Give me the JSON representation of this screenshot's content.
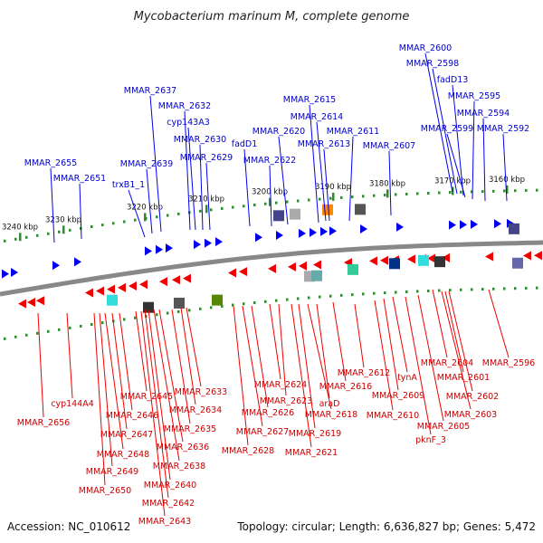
{
  "title": "Mycobacterium marinum M, complete genome",
  "footer": {
    "accession": "Accession: NC_010612",
    "summary": "Topology: circular; Length: 6,636,827 bp; Genes: 5,472"
  },
  "ticks": [
    "3240 kbp",
    "3230 kbp",
    "3220 kbp",
    "3210 kbp",
    "3200 kbp",
    "3190 kbp",
    "3180 kbp",
    "3170 kbp",
    "3160 kbp"
  ],
  "forward_genes": [
    "MMAR_2600",
    "MMAR_2598",
    "fadD13",
    "MMAR_2595",
    "MMAR_2594",
    "MMAR_2599",
    "MMAR_2592",
    "MMAR_2637",
    "MMAR_2615",
    "MMAR_2632",
    "MMAR_2614",
    "cyp143A3",
    "MMAR_2620",
    "MMAR_2611",
    "MMAR_2630",
    "fadD1",
    "MMAR_2613",
    "MMAR_2607",
    "MMAR_2629",
    "MMAR_2622",
    "MMAR_2655",
    "MMAR_2639",
    "MMAR_2651",
    "trxB1_1"
  ],
  "reverse_genes": [
    "MMAR_2596",
    "MMAR_2604",
    "MMAR_2612",
    "tynA",
    "MMAR_2601",
    "MMAR_2633",
    "MMAR_2624",
    "MMAR_2616",
    "MMAR_2645",
    "MMAR_2609",
    "MMAR_2602",
    "cyp144A4",
    "MMAR_2623",
    "araD",
    "MMAR_2634",
    "MMAR_2626",
    "MMAR_2646",
    "MMAR_2618",
    "MMAR_2610",
    "MMAR_2603",
    "MMAR_2656",
    "MMAR_2627",
    "MMAR_2605",
    "MMAR_2635",
    "MMAR_2619",
    "MMAR_2647",
    "pknF_3",
    "MMAR_2636",
    "MMAR_2628",
    "MMAR_2621",
    "MMAR_2648",
    "MMAR_2638",
    "MMAR_2649",
    "MMAR_2650",
    "MMAR_2640",
    "MMAR_2642",
    "MMAR_2643"
  ],
  "colors": {
    "forward": "#0000ee",
    "reverse": "#ee0000",
    "backbone": "#888888",
    "tick": "#2e8b2e"
  }
}
